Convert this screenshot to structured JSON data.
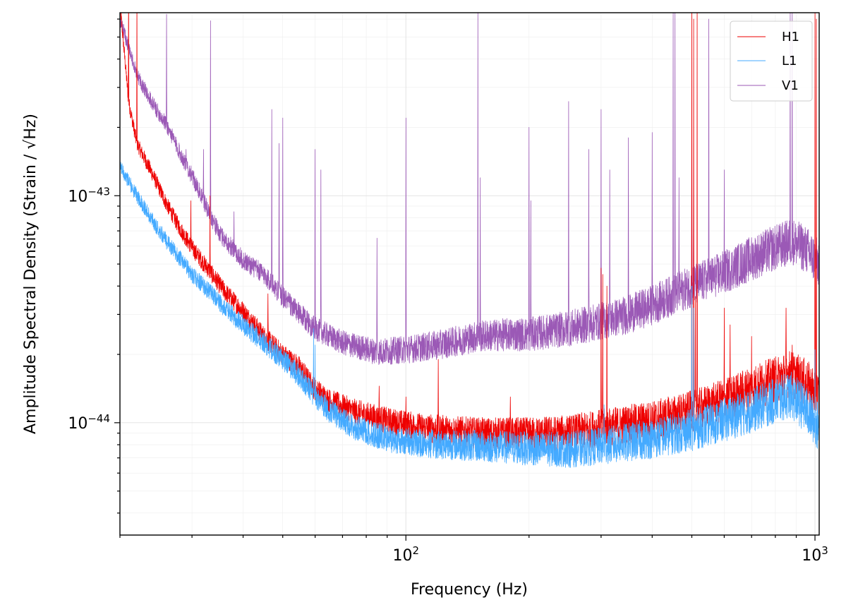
{
  "chart_data": {
    "type": "line",
    "title": "",
    "xlabel": "Frequency (Hz)",
    "ylabel": "Amplitude Spectral Density (Strain / √Hz)",
    "xscale": "log",
    "yscale": "log",
    "xlim": [
      20,
      1024
    ],
    "ylim": [
      3.2e-45,
      6.4e-43
    ],
    "x_ticks": [
      {
        "value": 100,
        "base": "10",
        "exp": "2"
      },
      {
        "value": 1000,
        "base": "10",
        "exp": "3"
      }
    ],
    "y_ticks": [
      {
        "value": 1e-44,
        "base": "10",
        "exp": "−44"
      },
      {
        "value": 1e-43,
        "base": "10",
        "exp": "−43"
      }
    ],
    "grid": true,
    "legend_position": "top-right",
    "series": [
      {
        "name": "H1",
        "color": "#ee0000",
        "line_width": 0.8,
        "noise": 0.05,
        "baseline": [
          [
            20,
            7e-43
          ],
          [
            21,
            2.6e-43
          ],
          [
            22,
            1.7e-43
          ],
          [
            24,
            1.25e-43
          ],
          [
            26,
            9.2e-44
          ],
          [
            28,
            7.2e-44
          ],
          [
            30,
            5.9e-44
          ],
          [
            33,
            4.7e-44
          ],
          [
            36,
            3.8e-44
          ],
          [
            40,
            3.1e-44
          ],
          [
            45,
            2.4e-44
          ],
          [
            50,
            2e-44
          ],
          [
            55,
            1.75e-44
          ],
          [
            60,
            1.4e-44
          ],
          [
            65,
            1.25e-44
          ],
          [
            75,
            1.12e-44
          ],
          [
            90,
            1.02e-44
          ],
          [
            110,
            9.5e-45
          ],
          [
            150,
            9e-45
          ],
          [
            200,
            8.9e-45
          ],
          [
            250,
            9e-45
          ],
          [
            300,
            9.5e-45
          ],
          [
            400,
            1.02e-44
          ],
          [
            500,
            1.12e-44
          ],
          [
            600,
            1.25e-44
          ],
          [
            700,
            1.42e-44
          ],
          [
            800,
            1.55e-44
          ],
          [
            870,
            1.65e-44
          ],
          [
            950,
            1.5e-44
          ],
          [
            1024,
            1.3e-44
          ]
        ],
        "peaks": [
          [
            21,
            9e-43
          ],
          [
            22,
            8e-43
          ],
          [
            29.8,
            9.5e-44
          ],
          [
            33.2,
            1e-43
          ],
          [
            40,
            3.2e-44
          ],
          [
            46,
            3.7e-44
          ],
          [
            86,
            1.45e-44
          ],
          [
            100,
            1.3e-44
          ],
          [
            120,
            1.9e-44
          ],
          [
            180,
            1.3e-44
          ],
          [
            300,
            4.8e-44
          ],
          [
            303,
            4.5e-44
          ],
          [
            310,
            4e-44
          ],
          [
            500,
            8e-43
          ],
          [
            505,
            6e-43
          ],
          [
            510,
            3.6e-44
          ],
          [
            515,
            7e-43
          ],
          [
            600,
            3.2e-44
          ],
          [
            620,
            2.7e-44
          ],
          [
            700,
            2.4e-44
          ],
          [
            850,
            3.2e-44
          ],
          [
            880,
            2.2e-44
          ],
          [
            1000,
            7e-43
          ],
          [
            1008,
            6e-43
          ]
        ]
      },
      {
        "name": "L1",
        "color": "#44aaff",
        "line_width": 0.8,
        "noise": 0.05,
        "baseline": [
          [
            20,
            1.35e-43
          ],
          [
            22,
            1e-43
          ],
          [
            24,
            7.8e-44
          ],
          [
            26,
            6.3e-44
          ],
          [
            28,
            5.3e-44
          ],
          [
            30,
            4.5e-44
          ],
          [
            33,
            3.8e-44
          ],
          [
            36,
            3.2e-44
          ],
          [
            40,
            2.7e-44
          ],
          [
            45,
            2.25e-44
          ],
          [
            50,
            1.9e-44
          ],
          [
            55,
            1.6e-44
          ],
          [
            60,
            1.3e-44
          ],
          [
            65,
            1.13e-44
          ],
          [
            75,
            9.5e-45
          ],
          [
            90,
            8.5e-45
          ],
          [
            110,
            8.1e-45
          ],
          [
            150,
            7.9e-45
          ],
          [
            200,
            7.7e-45
          ],
          [
            250,
            7.6e-45
          ],
          [
            300,
            7.9e-45
          ],
          [
            400,
            8.5e-45
          ],
          [
            500,
            9.3e-45
          ],
          [
            600,
            1.03e-44
          ],
          [
            700,
            1.13e-44
          ],
          [
            800,
            1.25e-44
          ],
          [
            870,
            1.33e-44
          ],
          [
            950,
            1.15e-44
          ],
          [
            1024,
            9.5e-45
          ]
        ],
        "peaks": [
          [
            59.5,
            2.6e-44
          ],
          [
            60,
            2.2e-44
          ],
          [
            305,
            1.2e-44
          ],
          [
            500,
            4e-44
          ],
          [
            505,
            3.2e-44
          ],
          [
            1000,
            2.1e-44
          ],
          [
            1024,
            2.3e-44
          ]
        ]
      },
      {
        "name": "V1",
        "color": "#9b59b6",
        "line_width": 0.8,
        "noise": 0.05,
        "baseline": [
          [
            20,
            6e-43
          ],
          [
            22,
            3.4e-43
          ],
          [
            24,
            2.55e-43
          ],
          [
            26,
            2.05e-43
          ],
          [
            28,
            1.55e-43
          ],
          [
            30,
            1.22e-43
          ],
          [
            32,
            9.5e-44
          ],
          [
            35,
            6.8e-44
          ],
          [
            40,
            5.2e-44
          ],
          [
            45,
            4.5e-44
          ],
          [
            50,
            3.6e-44
          ],
          [
            55,
            3e-44
          ],
          [
            60,
            2.6e-44
          ],
          [
            70,
            2.25e-44
          ],
          [
            85,
            2.05e-44
          ],
          [
            100,
            2.1e-44
          ],
          [
            120,
            2.2e-44
          ],
          [
            150,
            2.4e-44
          ],
          [
            180,
            2.45e-44
          ],
          [
            200,
            2.45e-44
          ],
          [
            250,
            2.6e-44
          ],
          [
            300,
            2.8e-44
          ],
          [
            350,
            3e-44
          ],
          [
            400,
            3.3e-44
          ],
          [
            500,
            4e-44
          ],
          [
            600,
            4.6e-44
          ],
          [
            700,
            5.3e-44
          ],
          [
            800,
            5.9e-44
          ],
          [
            880,
            6.3e-44
          ],
          [
            950,
            5.8e-44
          ],
          [
            1024,
            5e-44
          ]
        ],
        "peaks": [
          [
            26,
            6.3e-43
          ],
          [
            29,
            1.6e-43
          ],
          [
            31,
            1.15e-43
          ],
          [
            32,
            1.6e-43
          ],
          [
            33.3,
            5.9e-43
          ],
          [
            38,
            8.5e-44
          ],
          [
            47,
            2.4e-43
          ],
          [
            49,
            1.7e-43
          ],
          [
            50,
            2.2e-43
          ],
          [
            60,
            1.6e-43
          ],
          [
            62,
            1.3e-43
          ],
          [
            85,
            6.5e-44
          ],
          [
            100,
            2.2e-43
          ],
          [
            150,
            6.4e-43
          ],
          [
            152,
            1.2e-43
          ],
          [
            200,
            2e-43
          ],
          [
            202,
            9.5e-44
          ],
          [
            250,
            2.6e-43
          ],
          [
            280,
            1.6e-43
          ],
          [
            300,
            2.4e-43
          ],
          [
            315,
            1.3e-43
          ],
          [
            350,
            1.8e-43
          ],
          [
            400,
            1.9e-43
          ],
          [
            450,
            6.4e-43
          ],
          [
            455,
            6.4e-43
          ],
          [
            465,
            1.2e-43
          ],
          [
            500,
            2.6e-43
          ],
          [
            505,
            1.7e-43
          ],
          [
            550,
            6e-43
          ],
          [
            600,
            1.3e-43
          ],
          [
            870,
            6.4e-43
          ],
          [
            880,
            6.4e-43
          ]
        ]
      }
    ]
  }
}
